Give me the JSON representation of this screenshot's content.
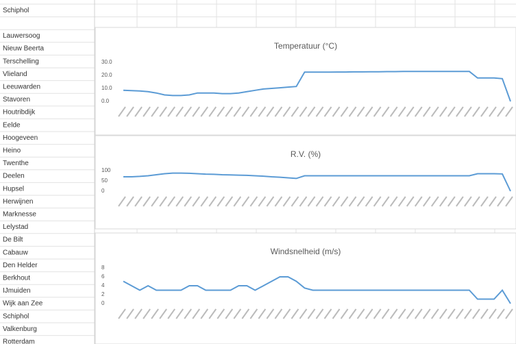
{
  "sheet": {
    "rows": [
      "Schiphol",
      null,
      "Lauwersoog",
      "Nieuw Beerta",
      "Terschelling",
      "Vlieland",
      "Leeuwarden",
      "Stavoren",
      "Houtribdijk",
      "Eelde",
      "Hoogeveen",
      "Heino",
      "Twenthe",
      "Deelen",
      "Hupsel",
      "Herwijnen",
      "Marknesse",
      "Lelystad",
      "De Bilt",
      "Cabauw",
      "Den Helder",
      "Berkhout",
      "IJmuiden",
      "Wijk aan Zee",
      "Schiphol",
      "Valkenburg",
      "Rotterdam"
    ]
  },
  "chart_data": [
    {
      "type": "line",
      "title": "Temperatuur (°C)",
      "color": "#5b9bd5",
      "ylim": [
        0,
        30
      ],
      "yticks": [
        {
          "value": 0,
          "label": "0.0"
        },
        {
          "value": 10,
          "label": "10.0"
        },
        {
          "value": 20,
          "label": "20.0"
        },
        {
          "value": 30,
          "label": "30.0"
        }
      ],
      "values": [
        8.5,
        8.3,
        8,
        7.5,
        6.5,
        5,
        4.5,
        4.5,
        5,
        6.5,
        6.5,
        6.5,
        6,
        6,
        6.5,
        7.5,
        8.5,
        9.5,
        10,
        10.5,
        11,
        11.5,
        22.5,
        22.5,
        22.5,
        22.5,
        22.6,
        22.6,
        22.7,
        22.7,
        22.8,
        22.8,
        22.9,
        22.9,
        23,
        23,
        23,
        23,
        23,
        23,
        23,
        23,
        23,
        18,
        18,
        18,
        17.5,
        0
      ]
    },
    {
      "type": "line",
      "title": "R.V. (%)",
      "color": "#5b9bd5",
      "ylim": [
        0,
        100
      ],
      "yticks": [
        0,
        50,
        100
      ],
      "values": [
        70,
        70,
        72,
        75,
        80,
        85,
        88,
        88,
        87,
        85,
        83,
        82,
        80,
        79,
        78,
        77,
        75,
        73,
        70,
        68,
        65,
        62,
        75,
        75,
        75,
        75,
        75,
        75,
        75,
        75,
        75,
        75,
        75,
        75,
        75,
        75,
        75,
        75,
        75,
        75,
        75,
        75,
        75,
        85,
        85,
        85,
        84,
        0
      ]
    },
    {
      "type": "line",
      "title": "Windsnelheid (m/s)",
      "color": "#5b9bd5",
      "ylim": [
        0,
        8
      ],
      "yticks": [
        0,
        2,
        4,
        6,
        8
      ],
      "values": [
        5,
        4,
        3,
        4,
        3,
        3,
        3,
        3,
        4,
        4,
        3,
        3,
        3,
        3,
        4,
        4,
        3,
        4,
        5,
        6,
        6,
        5,
        3.5,
        3,
        3,
        3,
        3,
        3,
        3,
        3,
        3,
        3,
        3,
        3,
        3,
        3,
        3,
        3,
        3,
        3,
        3,
        3,
        3,
        1,
        1,
        1,
        3,
        0
      ]
    }
  ]
}
